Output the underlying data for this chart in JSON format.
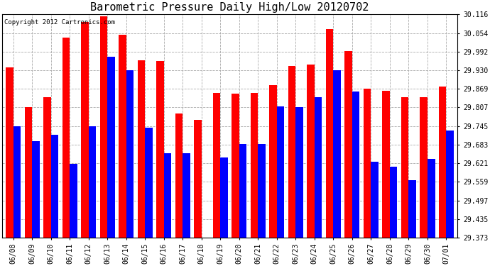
{
  "title": "Barometric Pressure Daily High/Low 20120702",
  "copyright_text": "Copyright 2012 Cartronics.com",
  "dates": [
    "06/08",
    "06/09",
    "06/10",
    "06/11",
    "06/12",
    "06/13",
    "06/14",
    "06/15",
    "06/16",
    "06/17",
    "06/18",
    "06/19",
    "06/20",
    "06/21",
    "06/22",
    "06/23",
    "06/24",
    "06/25",
    "06/26",
    "06/27",
    "06/28",
    "06/29",
    "06/30",
    "07/01"
  ],
  "highs": [
    29.94,
    29.807,
    29.84,
    30.04,
    30.09,
    30.11,
    30.048,
    29.964,
    29.962,
    29.787,
    29.765,
    29.854,
    29.852,
    29.855,
    29.88,
    29.945,
    29.95,
    30.068,
    29.995,
    29.87,
    29.862,
    29.84,
    29.84,
    29.875
  ],
  "lows": [
    29.745,
    29.695,
    29.715,
    29.62,
    29.745,
    29.975,
    29.93,
    29.74,
    29.655,
    29.655,
    29.373,
    29.64,
    29.685,
    29.685,
    29.81,
    29.808,
    29.84,
    29.93,
    29.86,
    29.625,
    29.61,
    29.565,
    29.635,
    29.73
  ],
  "high_color": "#ff0000",
  "low_color": "#0000ff",
  "background_color": "#ffffff",
  "grid_color": "#aaaaaa",
  "ymin": 29.373,
  "ymax": 30.116,
  "yticks": [
    29.373,
    29.435,
    29.497,
    29.559,
    29.621,
    29.683,
    29.745,
    29.807,
    29.869,
    29.93,
    29.992,
    30.054,
    30.116
  ],
  "title_fontsize": 11,
  "copyright_fontsize": 6.5,
  "tick_fontsize": 7,
  "bar_width": 0.4
}
